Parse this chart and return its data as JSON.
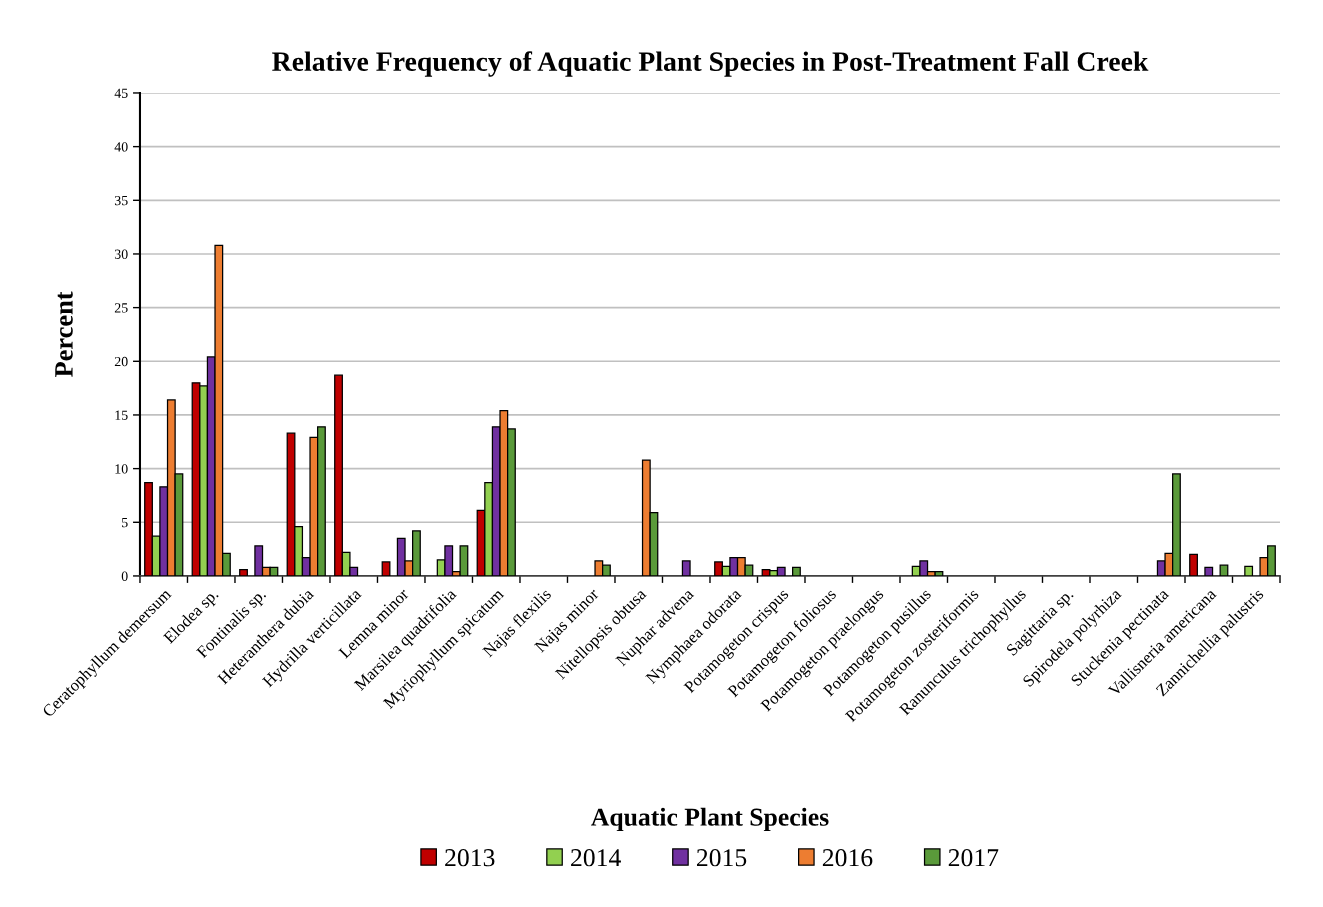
{
  "chart_data": {
    "type": "bar",
    "title": "Relative Frequency of Aquatic Plant Species in Post-Treatment Fall Creek",
    "xlabel": "Aquatic Plant Species",
    "ylabel": "Percent",
    "categories": [
      "Ceratophyllum demersum",
      "Elodea sp.",
      "Fontinalis sp.",
      "Heteranthera dubia",
      "Hydrilla verticillata",
      "Lemna minor",
      "Marsilea quadrifolia",
      "Myriophyllum spicatum",
      "Najas flexilis",
      "Najas minor",
      "Nitellopsis obtusa",
      "Nuphar advena",
      "Nymphaea odorata",
      "Potamogeton crispus",
      "Potamogeton foliosus",
      "Potamogeton praelongus",
      "Potamogeton pusillus",
      "Potamogeton zosteriformis",
      "Ranunculus trichophyllus",
      "Sagittaria sp.",
      "Spirodela polyrhiza",
      "Stuckenia pectinata",
      "Vallisneria americana",
      "Zannichellia palustris"
    ],
    "series": [
      {
        "name": "2013",
        "color": "#c00000",
        "values": [
          8.7,
          18.0,
          0.6,
          13.3,
          18.7,
          1.3,
          null,
          6.1,
          null,
          null,
          null,
          null,
          1.3,
          0.6,
          null,
          null,
          null,
          null,
          null,
          null,
          null,
          null,
          2.0,
          null
        ]
      },
      {
        "name": "2014",
        "color": "#92d050",
        "values": [
          3.7,
          17.7,
          null,
          4.6,
          2.2,
          null,
          1.5,
          8.7,
          null,
          null,
          null,
          null,
          0.9,
          0.5,
          null,
          null,
          0.9,
          null,
          null,
          null,
          null,
          null,
          null,
          0.9
        ]
      },
      {
        "name": "2015",
        "color": "#7030a0",
        "values": [
          8.3,
          20.4,
          2.8,
          1.7,
          0.8,
          3.5,
          2.8,
          13.9,
          null,
          null,
          null,
          1.4,
          1.7,
          0.8,
          null,
          null,
          1.4,
          null,
          null,
          null,
          null,
          1.4,
          0.8,
          null
        ]
      },
      {
        "name": "2016",
        "color": "#ed7d31",
        "values": [
          16.4,
          30.8,
          0.8,
          12.9,
          null,
          1.4,
          0.4,
          15.4,
          null,
          1.4,
          10.8,
          null,
          1.7,
          null,
          null,
          null,
          0.4,
          null,
          null,
          null,
          null,
          2.1,
          null,
          1.7
        ]
      },
      {
        "name": "2017",
        "color": "#5a9a3a",
        "values": [
          9.5,
          2.1,
          0.8,
          13.9,
          null,
          4.2,
          2.8,
          13.7,
          null,
          1.0,
          5.9,
          null,
          1.0,
          0.8,
          null,
          null,
          0.4,
          null,
          null,
          null,
          null,
          9.5,
          1.0,
          2.8
        ]
      }
    ],
    "ylim": [
      0,
      45
    ],
    "yticks": [
      0,
      5,
      10,
      15,
      20,
      25,
      30,
      35,
      40,
      45
    ],
    "grid": "y",
    "legend": "bottom"
  }
}
